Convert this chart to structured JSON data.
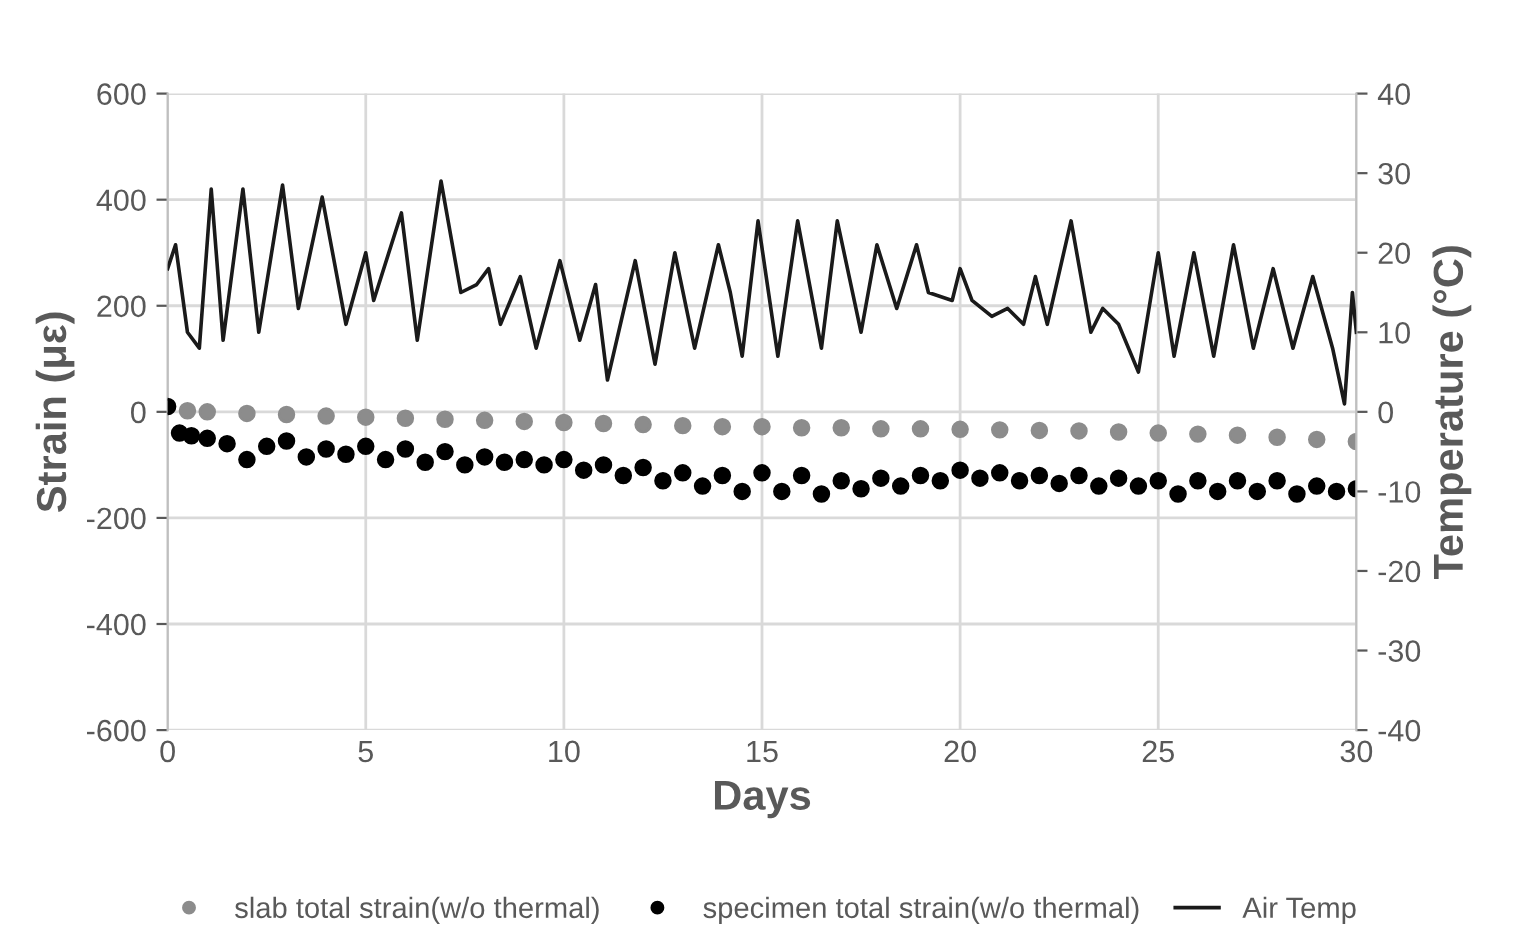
{
  "chart_data": {
    "type": "scatter",
    "xlabel": "Days",
    "ylabel": "Strain (με)",
    "y2label": "Temperature (°C)",
    "xlim": [
      0,
      30
    ],
    "xticks": [
      0,
      5,
      10,
      15,
      20,
      25,
      30
    ],
    "ylim": [
      -600,
      600
    ],
    "yticks": [
      -600,
      -400,
      -200,
      0,
      200,
      400,
      600
    ],
    "y2lim": [
      -40,
      40
    ],
    "y2ticks": [
      -40,
      -30,
      -20,
      -10,
      0,
      10,
      20,
      30,
      40
    ],
    "grid": true,
    "legend": "bottom",
    "series": [
      {
        "name": "slab total strain(w/o thermal)",
        "marker": "circle",
        "color": "#8c8c8c",
        "x": [
          0.5,
          1,
          2,
          3,
          4,
          5,
          6,
          7,
          8,
          9,
          10,
          11,
          12,
          13,
          14,
          15,
          16,
          17,
          18,
          19,
          20,
          21,
          22,
          23,
          24,
          25,
          26,
          27,
          28,
          29,
          30
        ],
        "values": [
          2,
          0,
          -3,
          -5,
          -8,
          -10,
          -12,
          -14,
          -16,
          -18,
          -20,
          -22,
          -24,
          -26,
          -28,
          -28,
          -30,
          -30,
          -32,
          -32,
          -33,
          -34,
          -35,
          -36,
          -38,
          -40,
          -42,
          -44,
          -48,
          -52,
          -56
        ]
      },
      {
        "name": "specimen total strain(w/o thermal)",
        "marker": "circle",
        "color": "#000000",
        "x": [
          0,
          0.3,
          0.6,
          1,
          1.5,
          2,
          2.5,
          3,
          3.5,
          4,
          4.5,
          5,
          5.5,
          6,
          6.5,
          7,
          7.5,
          8,
          8.5,
          9,
          9.5,
          10,
          10.5,
          11,
          11.5,
          12,
          12.5,
          13,
          13.5,
          14,
          14.5,
          15,
          15.5,
          16,
          16.5,
          17,
          17.5,
          18,
          18.5,
          19,
          19.5,
          20,
          20.5,
          21,
          21.5,
          22,
          22.5,
          23,
          23.5,
          24,
          24.5,
          25,
          25.5,
          26,
          26.5,
          27,
          27.5,
          28,
          28.5,
          29,
          29.5,
          30
        ],
        "values": [
          10,
          -40,
          -45,
          -50,
          -60,
          -90,
          -65,
          -55,
          -85,
          -70,
          -80,
          -65,
          -90,
          -70,
          -95,
          -75,
          -100,
          -85,
          -95,
          -90,
          -100,
          -90,
          -110,
          -100,
          -120,
          -105,
          -130,
          -115,
          -140,
          -120,
          -150,
          -115,
          -150,
          -120,
          -155,
          -130,
          -145,
          -125,
          -140,
          -120,
          -130,
          -110,
          -125,
          -115,
          -130,
          -120,
          -135,
          -120,
          -140,
          -125,
          -140,
          -130,
          -155,
          -130,
          -150,
          -130,
          -150,
          -130,
          -155,
          -140,
          -150,
          -145
        ]
      },
      {
        "name": "Air Temp",
        "type": "line",
        "axis": "y2",
        "color": "#1a1a1a",
        "marker": "none",
        "x": [
          0,
          0.2,
          0.5,
          0.8,
          1.1,
          1.4,
          1.9,
          2.3,
          2.9,
          3.3,
          3.9,
          4.5,
          5.0,
          5.2,
          5.9,
          6.3,
          6.9,
          7.4,
          7.8,
          8.1,
          8.4,
          8.9,
          9.3,
          9.9,
          10.4,
          10.8,
          11.1,
          11.8,
          12.3,
          12.8,
          13.3,
          13.9,
          14.2,
          14.5,
          14.9,
          15.4,
          15.9,
          16.5,
          16.9,
          17.5,
          17.9,
          18.4,
          18.9,
          19.2,
          19.8,
          20.0,
          20.3,
          20.8,
          21.2,
          21.6,
          21.9,
          22.2,
          22.8,
          23.3,
          23.6,
          24.0,
          24.5,
          25.0,
          25.4,
          25.9,
          26.4,
          26.9,
          27.4,
          27.9,
          28.4,
          28.9,
          29.4,
          29.7,
          29.9,
          30.0
        ],
        "values": [
          18,
          21,
          10,
          8,
          28,
          9,
          28,
          10,
          28.5,
          13,
          27,
          11,
          20,
          14,
          25,
          9,
          29,
          15,
          16,
          18,
          11,
          17,
          8,
          19,
          9,
          16,
          4,
          19,
          6,
          20,
          8,
          21,
          15,
          7,
          24,
          7,
          24,
          8,
          24,
          10,
          21,
          13,
          21,
          15,
          14,
          18,
          14,
          12,
          13,
          11,
          17,
          11,
          24,
          10,
          13,
          11,
          5,
          20,
          7,
          20,
          7,
          21,
          8,
          18,
          8,
          17,
          8,
          1,
          15,
          10
        ]
      }
    ]
  }
}
